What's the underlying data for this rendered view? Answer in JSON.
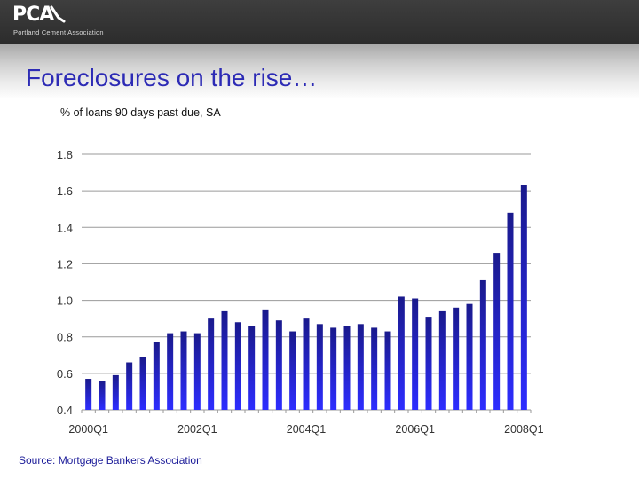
{
  "header": {
    "logo_text": "PCA",
    "logo_subtitle": "Portland Cement Association"
  },
  "title": "Foreclosures on the rise…",
  "subtitle": "%  of loans 90 days past due, SA",
  "source": "Source: Mortgage Bankers Association",
  "colors": {
    "title": "#2d2bb5",
    "bar_top": "#1a1a8c",
    "bar_bottom": "#2d2dff",
    "gridline": "#9a9a9a"
  },
  "chart_data": {
    "type": "bar",
    "title": "",
    "xlabel": "",
    "ylabel": "",
    "ylim": [
      0.4,
      1.8
    ],
    "yticks": [
      0.4,
      0.6,
      0.8,
      1.0,
      1.2,
      1.4,
      1.6,
      1.8
    ],
    "ytick_labels": [
      "0.4",
      "0.6",
      "0.8",
      "1.0",
      "1.2",
      "1.4",
      "1.6",
      "1.8"
    ],
    "grid": true,
    "categories": [
      "2000Q1",
      "2000Q2",
      "2000Q3",
      "2000Q4",
      "2001Q1",
      "2001Q2",
      "2001Q3",
      "2001Q4",
      "2002Q1",
      "2002Q2",
      "2002Q3",
      "2002Q4",
      "2003Q1",
      "2003Q2",
      "2003Q3",
      "2003Q4",
      "2004Q1",
      "2004Q2",
      "2004Q3",
      "2004Q4",
      "2005Q1",
      "2005Q2",
      "2005Q3",
      "2005Q4",
      "2006Q1",
      "2006Q2",
      "2006Q3",
      "2006Q4",
      "2007Q1",
      "2007Q2",
      "2007Q3",
      "2007Q4",
      "2008Q1"
    ],
    "values": [
      0.57,
      0.56,
      0.59,
      0.66,
      0.69,
      0.77,
      0.82,
      0.83,
      0.82,
      0.9,
      0.94,
      0.88,
      0.86,
      0.95,
      0.89,
      0.83,
      0.9,
      0.87,
      0.85,
      0.86,
      0.87,
      0.85,
      0.83,
      1.02,
      1.01,
      0.91,
      0.94,
      0.96,
      0.98,
      1.11,
      1.26,
      1.48,
      1.63
    ],
    "xtick_labels": [
      "2000Q1",
      "2002Q1",
      "2004Q1",
      "2006Q1",
      "2008Q1"
    ],
    "xtick_label_categories": [
      "2000Q1",
      "2002Q1",
      "2004Q1",
      "2006Q1",
      "2008Q1"
    ]
  }
}
